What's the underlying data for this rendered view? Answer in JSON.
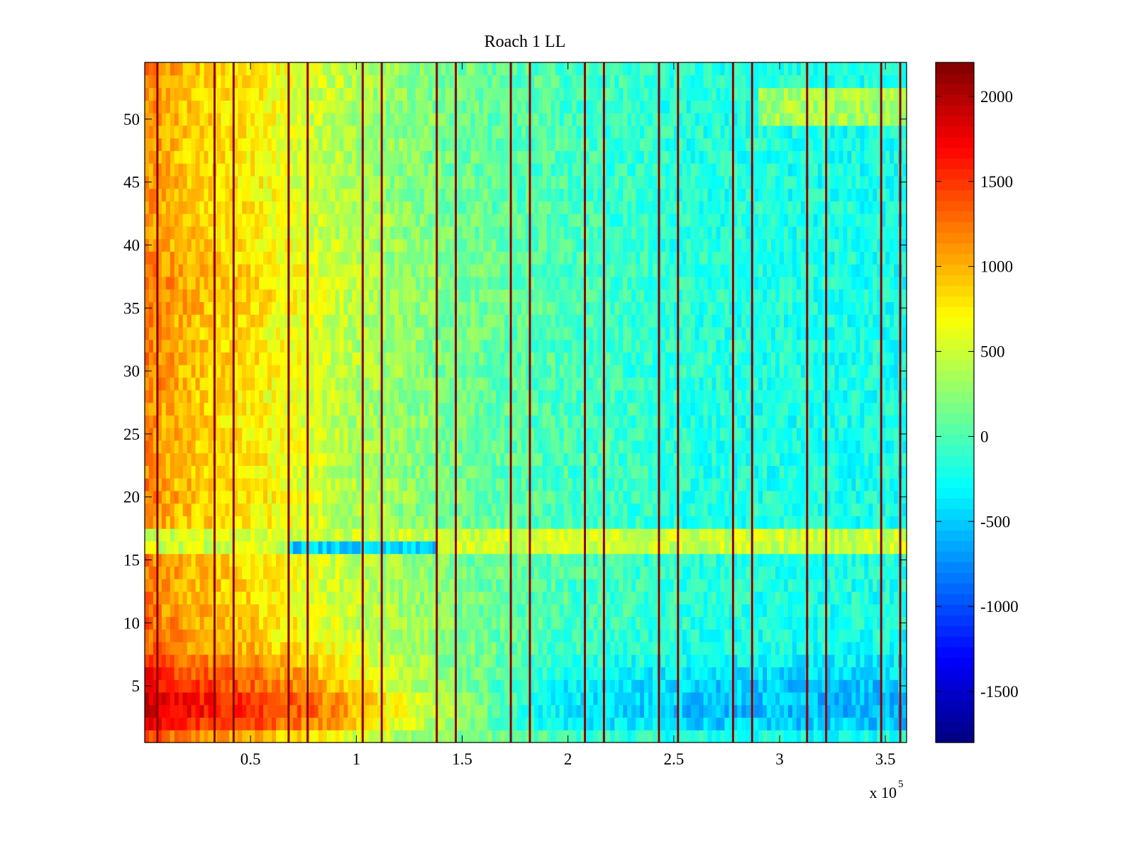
{
  "chart_data": {
    "type": "heatmap",
    "title": "Roach 1 LL",
    "xlabel": "",
    "ylabel": "",
    "x_exponent_label": "x 10",
    "x_exponent_sup": "5",
    "x_scale": 100000,
    "xlim": [
      0,
      3.6
    ],
    "ylim": [
      0.5,
      54.5
    ],
    "x_ticks": [
      0.5,
      1,
      1.5,
      2,
      2.5,
      3,
      3.5
    ],
    "x_tick_labels": [
      "0.5",
      "1",
      "1.5",
      "2",
      "2.5",
      "3",
      "3.5"
    ],
    "y_ticks": [
      5,
      10,
      15,
      20,
      25,
      30,
      35,
      40,
      45,
      50
    ],
    "y_tick_labels": [
      "5",
      "10",
      "15",
      "20",
      "25",
      "30",
      "35",
      "40",
      "45",
      "50"
    ],
    "colormap": "jet",
    "clim": [
      -1800,
      2200
    ],
    "colorbar_ticks": [
      -1500,
      -1000,
      -500,
      0,
      500,
      1000,
      1500,
      2000
    ],
    "colorbar_tick_labels": [
      "-1500",
      "-1000",
      "-500",
      "0",
      "500",
      "1000",
      "1500",
      "2000"
    ],
    "rows": 54,
    "column_profile": {
      "x": [
        0,
        0.1,
        0.3,
        0.5,
        0.7,
        1.0,
        1.4,
        1.8,
        2.2,
        2.6,
        3.0,
        3.4,
        3.6
      ],
      "base": [
        1200,
        1000,
        850,
        750,
        580,
        350,
        150,
        20,
        -80,
        -170,
        -200,
        -220,
        -230
      ]
    },
    "row_offsets": {
      "rows": [
        1,
        2,
        3,
        4,
        5,
        6,
        7,
        8,
        9,
        10,
        11,
        12,
        13,
        14,
        15,
        16,
        17,
        18,
        19,
        20,
        21,
        22,
        23,
        24,
        25,
        26,
        27,
        28,
        29,
        30,
        31,
        32,
        33,
        34,
        35,
        36,
        37,
        38,
        39,
        40,
        41,
        42,
        43,
        44,
        45,
        46,
        47,
        48,
        49,
        50,
        51,
        52,
        53,
        54
      ],
      "offset": [
        250,
        650,
        800,
        750,
        600,
        480,
        350,
        220,
        150,
        150,
        120,
        100,
        80,
        80,
        60,
        0,
        0,
        20,
        0,
        50,
        30,
        0,
        40,
        30,
        40,
        0,
        20,
        0,
        60,
        40,
        80,
        40,
        20,
        60,
        80,
        100,
        120,
        100,
        60,
        40,
        0,
        20,
        0,
        0,
        0,
        -20,
        0,
        0,
        0,
        0,
        0,
        20,
        40,
        60
      ],
      "late_offset": [
        -80,
        -420,
        -520,
        -480,
        -420,
        -300,
        -180,
        -80,
        -50,
        -20,
        -10,
        0,
        0,
        0,
        0,
        0,
        0,
        0,
        0,
        0,
        0,
        0,
        0,
        0,
        0,
        0,
        0,
        0,
        0,
        0,
        0,
        0,
        0,
        0,
        0,
        0,
        0,
        0,
        0,
        0,
        0,
        0,
        0,
        0,
        0,
        0,
        0,
        0,
        0,
        0,
        0,
        0,
        0,
        0
      ]
    },
    "row_bands": [
      {
        "rows": [
          16,
          17
        ],
        "x_range": [
          0,
          3.6
        ],
        "value": 500
      },
      {
        "rows": [
          16
        ],
        "x_range": [
          0.68,
          1.38
        ],
        "value": -500
      },
      {
        "rows": [
          50,
          51,
          52
        ],
        "x_range": [
          2.9,
          3.6
        ],
        "value": 350
      }
    ],
    "vertical_lines": {
      "x": [
        0.06,
        0.33,
        0.42,
        0.68,
        0.77,
        1.03,
        1.12,
        1.38,
        1.47,
        1.73,
        1.82,
        2.08,
        2.17,
        2.43,
        2.52,
        2.78,
        2.87,
        3.13,
        3.22,
        3.48,
        3.57
      ],
      "value": 2100
    }
  }
}
